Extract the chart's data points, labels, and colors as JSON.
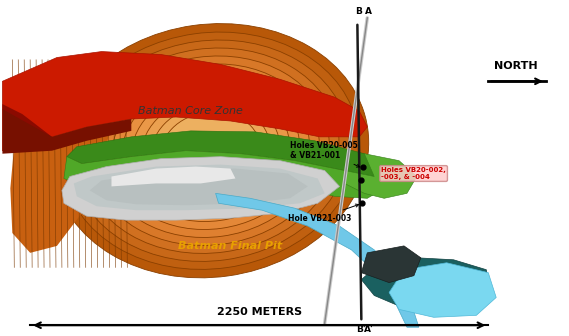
{
  "scale_text": "2250 METERS",
  "north_text": "NORTH",
  "batman_core_zone": "Batman Core Zone",
  "batman_final_pit": "Batman Final Pit",
  "holes_label1": "Holes VB20-005\n& VB21-001",
  "holes_label2": "Holes VB20-002,\n-003, & -004",
  "hole_label3": "Hole VB21-003",
  "bg_color": "#ffffff",
  "orange_dark": "#a04000",
  "orange_mid": "#c86010",
  "orange_light": "#e07820",
  "red_bright": "#cc1a00",
  "red_dark": "#8b1400",
  "green_dark": "#3a8a1a",
  "green_light": "#5ab030",
  "gray_light": "#d0d0d0",
  "gray_mid": "#b0b8b8",
  "teal_dark": "#1a6060",
  "teal_mid": "#2a8080",
  "cyan_light": "#70c8e8",
  "dark_gray": "#303838"
}
